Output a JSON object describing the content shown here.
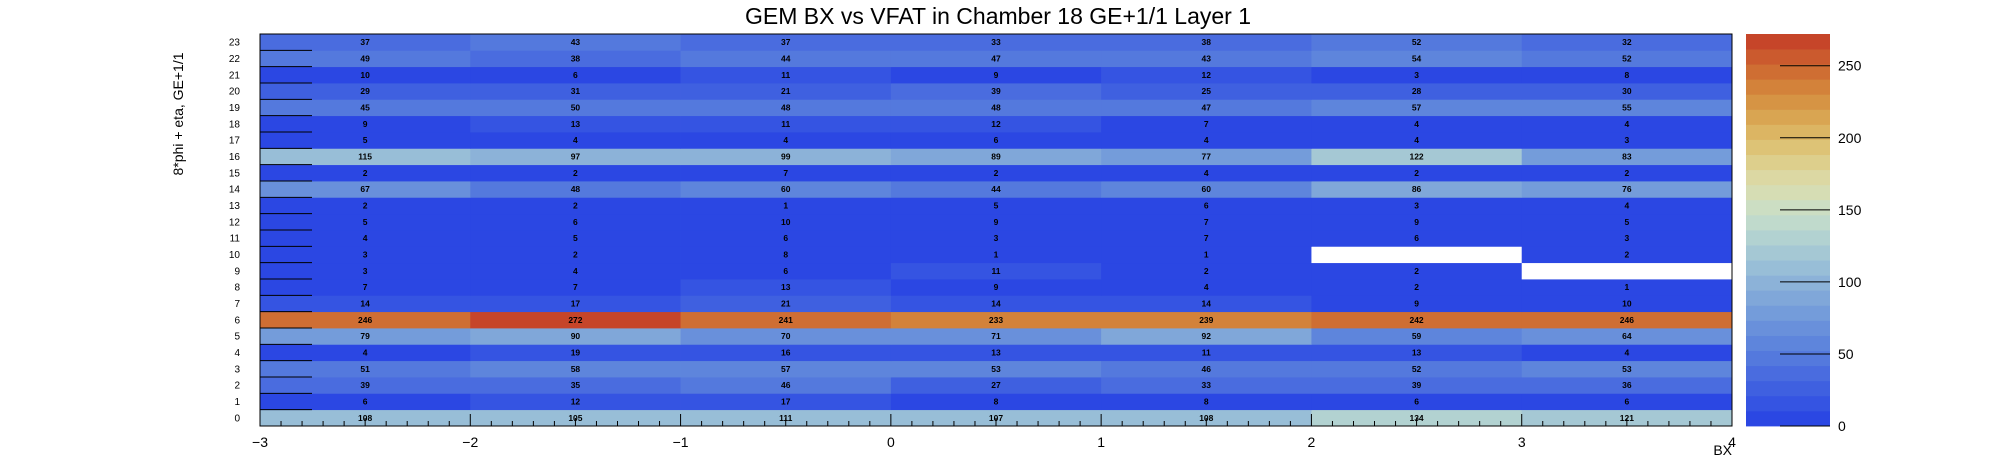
{
  "chart_data": {
    "type": "heatmap",
    "title": "GEM BX vs VFAT in Chamber 18 GE+1/1 Layer 1",
    "xlabel": "BX",
    "ylabel": "8*phi + eta, GE+1/1",
    "x_bins": [
      -3,
      -2,
      -1,
      0,
      1,
      2,
      3
    ],
    "x_bin_width": 1,
    "xlim": [
      -3,
      4
    ],
    "x_tick_labels": [
      "−3",
      "−2",
      "−1",
      "0",
      "1",
      "2",
      "3",
      "4"
    ],
    "y_bins": [
      0,
      1,
      2,
      3,
      4,
      5,
      6,
      7,
      8,
      9,
      10,
      11,
      12,
      13,
      14,
      15,
      16,
      17,
      18,
      19,
      20,
      21,
      22,
      23
    ],
    "y_tick_labels": [
      "0",
      "1",
      "2",
      "3",
      "4",
      "5",
      "6",
      "7",
      "8",
      "9",
      "10",
      "11",
      "12",
      "13",
      "14",
      "15",
      "16",
      "17",
      "18",
      "19",
      "20",
      "21",
      "22",
      "23"
    ],
    "zlim": [
      0,
      272
    ],
    "z_tick_labels": [
      "0",
      "50",
      "100",
      "150",
      "200",
      "250"
    ],
    "z_ticks": [
      0,
      50,
      100,
      150,
      200,
      250
    ],
    "values": [
      [
        108,
        105,
        111,
        107,
        108,
        134,
        121
      ],
      [
        6,
        12,
        17,
        8,
        8,
        6,
        6
      ],
      [
        39,
        35,
        46,
        27,
        33,
        39,
        36
      ],
      [
        51,
        58,
        57,
        53,
        46,
        52,
        53
      ],
      [
        4,
        19,
        16,
        13,
        11,
        13,
        4
      ],
      [
        79,
        90,
        70,
        71,
        92,
        59,
        64
      ],
      [
        246,
        272,
        241,
        233,
        239,
        242,
        246
      ],
      [
        14,
        17,
        21,
        14,
        14,
        9,
        10
      ],
      [
        7,
        7,
        13,
        9,
        4,
        2,
        1
      ],
      [
        3,
        4,
        6,
        11,
        2,
        2,
        null
      ],
      [
        3,
        2,
        8,
        1,
        1,
        null,
        2
      ],
      [
        4,
        5,
        6,
        3,
        7,
        6,
        3
      ],
      [
        5,
        6,
        10,
        9,
        7,
        9,
        5
      ],
      [
        2,
        2,
        1,
        5,
        6,
        3,
        4
      ],
      [
        67,
        48,
        60,
        44,
        60,
        86,
        76
      ],
      [
        2,
        2,
        7,
        2,
        4,
        2,
        2
      ],
      [
        115,
        97,
        99,
        89,
        77,
        122,
        83
      ],
      [
        5,
        4,
        4,
        6,
        4,
        4,
        3
      ],
      [
        9,
        13,
        11,
        12,
        7,
        4,
        4
      ],
      [
        45,
        50,
        48,
        48,
        47,
        57,
        55
      ],
      [
        29,
        31,
        21,
        39,
        25,
        28,
        30
      ],
      [
        10,
        6,
        11,
        9,
        12,
        3,
        8
      ],
      [
        49,
        38,
        44,
        47,
        43,
        54,
        52
      ],
      [
        37,
        43,
        37,
        33,
        38,
        52,
        32
      ]
    ],
    "palette": [
      "#2b47e3",
      "#3554e2",
      "#3f60e0",
      "#4a6cdf",
      "#5479dd",
      "#5e85dc",
      "#6990db",
      "#749cda",
      "#80a7d9",
      "#8cb2d8",
      "#98bed7",
      "#a5c8d4",
      "#b2d2d1",
      "#c0dacc",
      "#ccdec3",
      "#d6ddb4",
      "#dcd8a3",
      "#ddcf8c",
      "#ddc376",
      "#dcb563",
      "#d9a552",
      "#d69444",
      "#d3823a",
      "#cf6e33",
      "#cb5a2e",
      "#c64529"
    ],
    "empty_color": "#ffffff",
    "grid": false,
    "legend_placement": "right (color scale)"
  }
}
